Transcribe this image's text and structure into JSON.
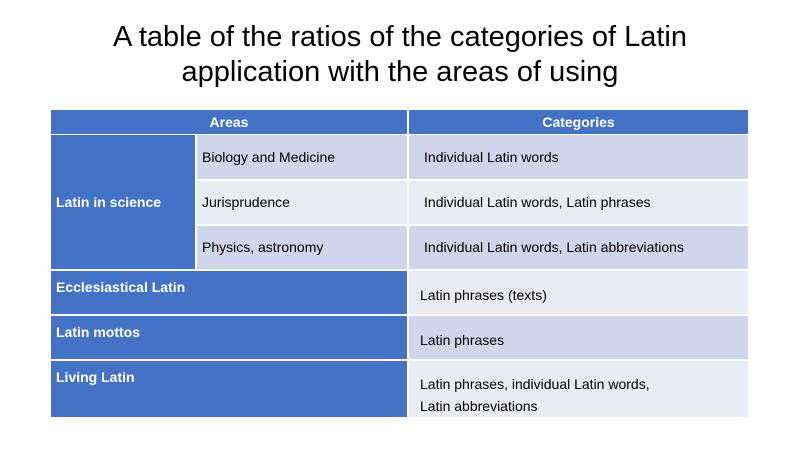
{
  "title": {
    "line1": "A table of the ratios of the categories of Latin",
    "line2": "application with the areas of using"
  },
  "table": {
    "headers": {
      "areas": "Areas",
      "categories": "Categories"
    },
    "science_group": {
      "label": "Latin in science",
      "rows": [
        {
          "area": "Biology and Medicine",
          "category": "Individual Latin words"
        },
        {
          "area": "Jurisprudence",
          "category": "Individual Latin words, Latin phrases"
        },
        {
          "area": "Physics, astronomy",
          "category": "Individual Latin words, Latin abbreviations"
        }
      ]
    },
    "other_rows": [
      {
        "area": "Ecclesiastical Latin",
        "category": "Latin phrases (texts)"
      },
      {
        "area": "Latin mottos",
        "category": "Latin phrases"
      },
      {
        "area": "Living Latin",
        "category_line1": "Latin phrases, individual Latin words,",
        "category_line2": "Latin abbreviations"
      }
    ]
  }
}
